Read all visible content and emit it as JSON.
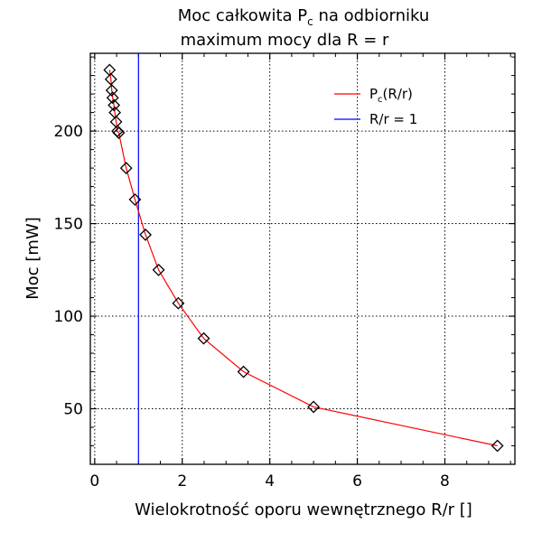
{
  "chart_data": {
    "type": "line",
    "title_line1": "Moc całkowita P",
    "title_line1_sub": "c",
    "title_line1_tail": " na odbiorniku",
    "title_line2": "maximum mocy dla R = r",
    "xlabel": "Wielokrotność oporu wewnętrznego R/r []",
    "ylabel": "Moc [mW]",
    "xlim": [
      -0.1,
      9.6
    ],
    "ylim": [
      20,
      242
    ],
    "xticks": [
      0,
      2,
      4,
      6,
      8
    ],
    "yticks": [
      50,
      100,
      150,
      200
    ],
    "grid": true,
    "legend_position": "top-right",
    "series": [
      {
        "name": "P",
        "name_sub": "c",
        "name_tail": "(R/r)",
        "color": "#ff0000",
        "marker": "diamond",
        "x": [
          0.34,
          0.37,
          0.39,
          0.41,
          0.44,
          0.46,
          0.49,
          0.52,
          0.55,
          0.72,
          0.92,
          1.16,
          1.46,
          1.91,
          2.49,
          3.4,
          5.0,
          9.2
        ],
        "y": [
          233,
          228,
          222,
          218,
          214,
          210,
          205,
          200,
          199,
          180,
          163,
          144,
          125,
          107,
          88,
          70,
          51,
          30
        ]
      },
      {
        "name": "R/r = 1",
        "color": "#0000ff",
        "x": [
          1,
          1
        ],
        "y": [
          20,
          242
        ]
      }
    ]
  }
}
